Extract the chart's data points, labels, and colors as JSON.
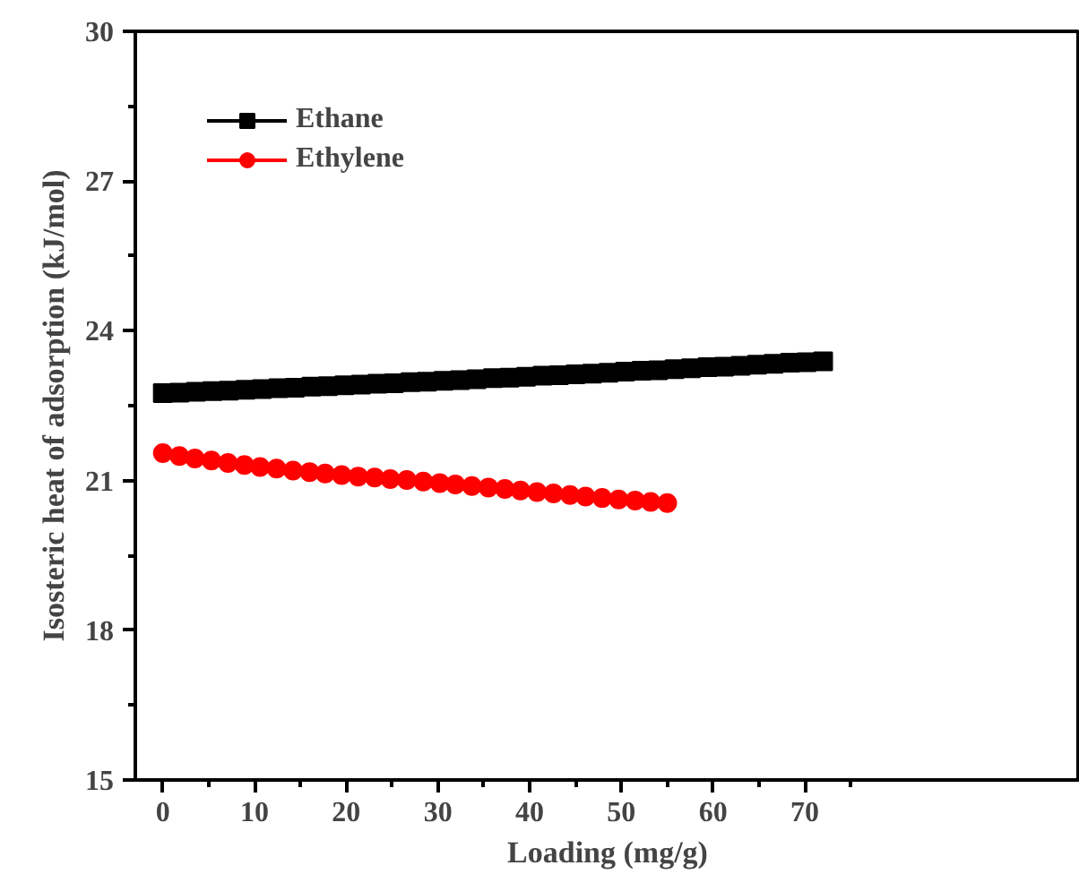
{
  "chart_data": {
    "type": "scatter",
    "xlabel": "Loading (mg/g)",
    "ylabel": "Isosteric heat of adsorption (kJ/mol)",
    "xlim": [
      -3,
      100
    ],
    "xticks": [
      0,
      10,
      20,
      30,
      40,
      50,
      60,
      70
    ],
    "ylim": [
      15,
      30
    ],
    "yticks": [
      15,
      18,
      21,
      24,
      27,
      30
    ],
    "grid": false,
    "legend": "top left",
    "line_style": "solid",
    "series": [
      {
        "name": "Ethane",
        "color": "#000000",
        "marker": "square",
        "x": [
          0,
          1.8,
          3.6,
          5.4,
          7.2,
          9,
          10.8,
          12.6,
          14.4,
          16.2,
          18,
          19.8,
          21.6,
          23.4,
          25.2,
          27,
          28.8,
          30.6,
          32.4,
          34.2,
          36,
          37.8,
          39.6,
          41.4,
          43.2,
          45,
          46.8,
          48.6,
          50.4,
          52.2,
          54,
          55.8,
          57.6,
          59.4,
          61.2,
          63,
          64.8,
          66.6,
          68.4,
          70.2,
          72
        ],
        "values": [
          22.75,
          22.76,
          22.78,
          22.79,
          22.8,
          22.82,
          22.83,
          22.85,
          22.86,
          22.88,
          22.89,
          22.91,
          22.92,
          22.94,
          22.95,
          22.97,
          22.98,
          23.0,
          23.01,
          23.03,
          23.05,
          23.06,
          23.08,
          23.1,
          23.11,
          23.13,
          23.14,
          23.16,
          23.18,
          23.2,
          23.21,
          23.23,
          23.25,
          23.27,
          23.28,
          23.3,
          23.32,
          23.34,
          23.36,
          23.37,
          23.39
        ]
      },
      {
        "name": "Ethylene",
        "color": "#ff0000",
        "marker": "circle",
        "x": [
          0,
          1.8,
          3.5,
          5.3,
          7.1,
          8.9,
          10.6,
          12.4,
          14.2,
          16,
          17.7,
          19.5,
          21.3,
          23.1,
          24.8,
          26.6,
          28.4,
          30.2,
          31.9,
          33.7,
          35.5,
          37.3,
          39,
          40.8,
          42.6,
          44.4,
          46.1,
          47.9,
          49.7,
          51.5,
          53.2,
          55
        ],
        "values": [
          21.55,
          21.49,
          21.44,
          21.4,
          21.35,
          21.31,
          21.27,
          21.24,
          21.2,
          21.17,
          21.14,
          21.11,
          21.08,
          21.06,
          21.03,
          21.01,
          20.98,
          20.95,
          20.92,
          20.89,
          20.86,
          20.83,
          20.8,
          20.77,
          20.74,
          20.71,
          20.68,
          20.65,
          20.62,
          20.6,
          20.57,
          20.55
        ]
      }
    ]
  }
}
